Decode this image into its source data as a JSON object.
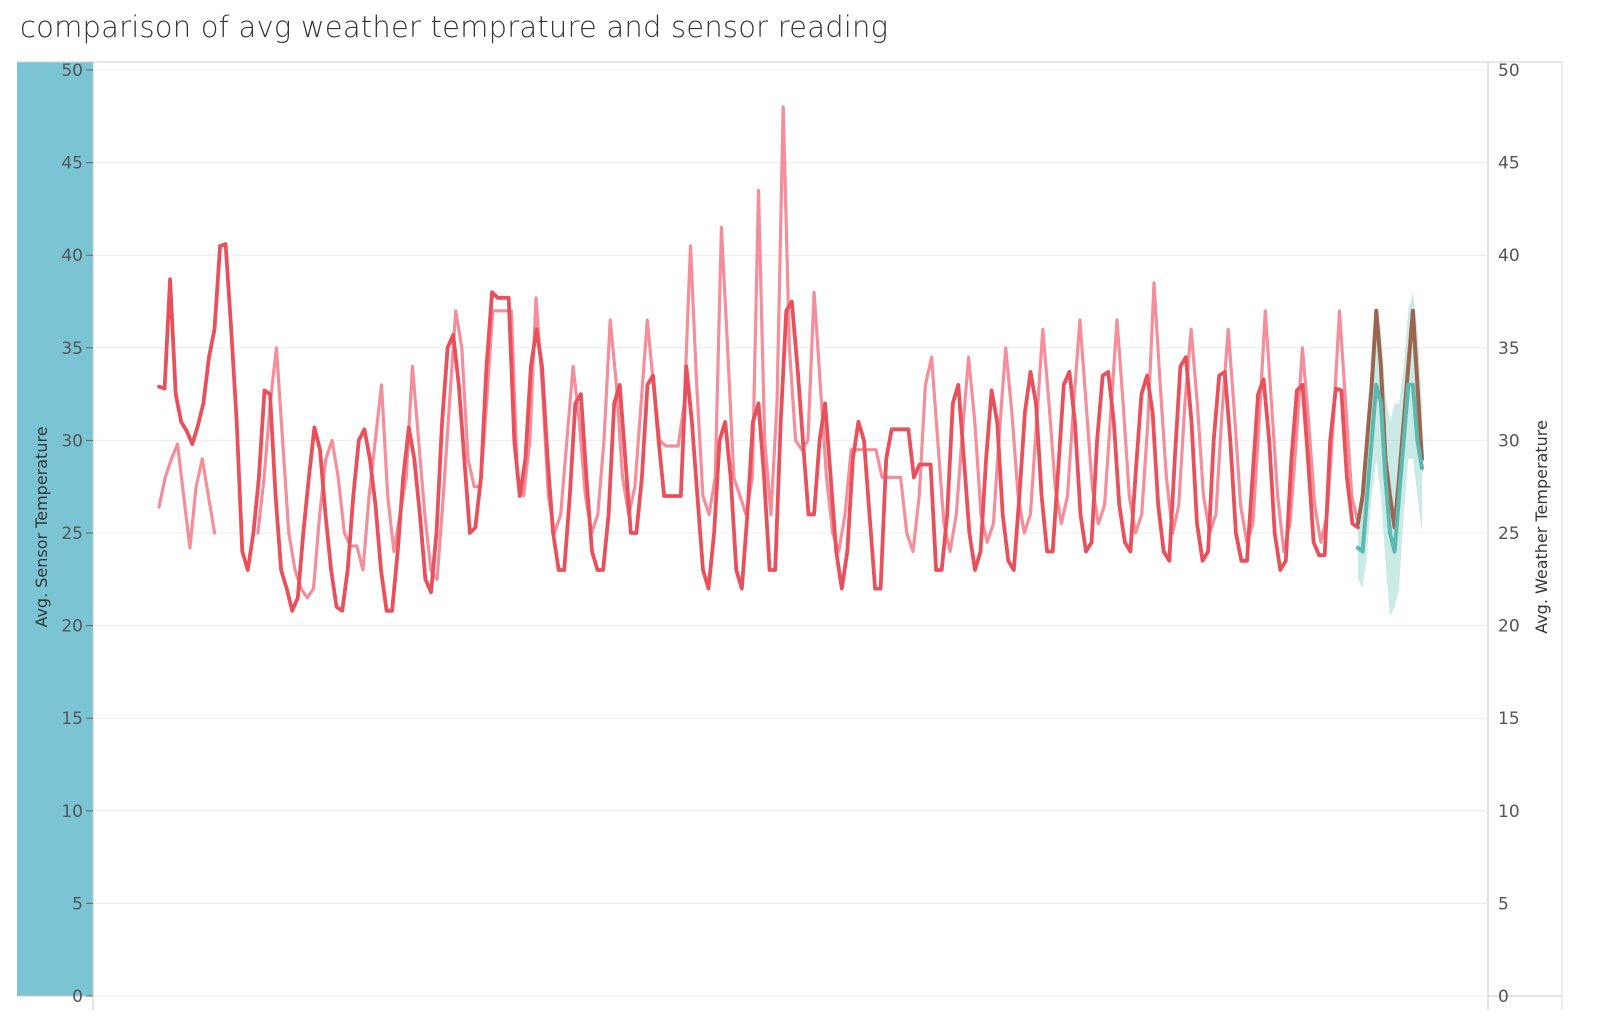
{
  "chart_data": {
    "type": "line",
    "title": "comparison of avg weather temprature and sensor reading",
    "ylabel_left": "Avg. Sensor Temperature",
    "ylabel_right": "Avg. Weather Temperature",
    "ylim": [
      0,
      50
    ],
    "y_ticks_left": [
      "0",
      "5",
      "10",
      "15",
      "20",
      "25",
      "30",
      "35",
      "40",
      "45",
      "50"
    ],
    "y_ticks_right": [
      "0",
      "5",
      "10",
      "15",
      "20",
      "25",
      "30",
      "35",
      "40",
      "45",
      "50"
    ],
    "grid": true,
    "colors": {
      "sensor": "#e8505b",
      "weather": "#f48e9b",
      "forecast_sensor": "#9b6550",
      "forecast_weather": "#5bb9b0",
      "forecast_band": "#9fd8d1",
      "left_axis_band": "#7ac4d4"
    },
    "series": [
      {
        "role": "sensor",
        "values": [
          32.9,
          32.8,
          38.7,
          32.5,
          31.0,
          30.5,
          29.8,
          30.8,
          32.0,
          34.5,
          36.0,
          40.5,
          40.6,
          36.0,
          31.0,
          24.0,
          23.0,
          25.0,
          28.0,
          32.7,
          32.5,
          27.0,
          23.0,
          22.0,
          20.8,
          21.5,
          25.0,
          28.0,
          30.7,
          29.5,
          26.0,
          23.0,
          21.0,
          20.8,
          23.0,
          27.0,
          30.0,
          30.6,
          29.0,
          26.5,
          23.0,
          20.8,
          20.8,
          24.0,
          28.0,
          30.7,
          29.0,
          26.0,
          22.5,
          21.8,
          25.0,
          31.0,
          35.0,
          35.7,
          33.0,
          29.0,
          25.0,
          25.3,
          28.0,
          34.0,
          38.0,
          37.7,
          37.7,
          37.7,
          30.0,
          27.0,
          29.0,
          34.0,
          36.0,
          34.0,
          29.0,
          25.0,
          23.0,
          23.0,
          27.0,
          32.0,
          32.5,
          28.0,
          24.0,
          23.0,
          23.0,
          26.0,
          32.0,
          33.0,
          29.0,
          25.0,
          25.0,
          28.0,
          33.0,
          33.5,
          30.0,
          27.0,
          27.0,
          27.0,
          27.0,
          34.0,
          31.0,
          27.0,
          23.0,
          22.0,
          25.0,
          30.0,
          31.0,
          28.0,
          23.0,
          22.0,
          26.0,
          31.0,
          32.0,
          28.0,
          23.0,
          23.0,
          31.0,
          37.0,
          37.5,
          34.0,
          30.0,
          26.0,
          26.0,
          30.0,
          32.0,
          28.0,
          24.0,
          22.0,
          24.0,
          29.0,
          31.0,
          30.0,
          26.0,
          22.0,
          22.0,
          29.0,
          30.6,
          30.6,
          30.6,
          30.6,
          28.0,
          28.7,
          28.7,
          28.7,
          23.0,
          23.0,
          26.0,
          32.0,
          33.0,
          29.0,
          25.0,
          23.0,
          24.0,
          29.0,
          32.7,
          31.0,
          26.0,
          23.5,
          23.0,
          27.0,
          31.5,
          33.7,
          32.0,
          27.0,
          24.0,
          24.0,
          28.5,
          33.0,
          33.7,
          31.0,
          26.0,
          24.0,
          24.5,
          30.0,
          33.5,
          33.7,
          31.0,
          26.5,
          24.5,
          24.0,
          28.5,
          32.5,
          33.5,
          31.5,
          26.5,
          24.0,
          23.5,
          29.0,
          34.0,
          34.5,
          31.0,
          25.5,
          23.5,
          24.0,
          30.0,
          33.5,
          33.7,
          30.0,
          25.0,
          23.5,
          23.5,
          28.0,
          32.5,
          33.3,
          30.0,
          25.0,
          23.0,
          23.5,
          29.0,
          32.7,
          33.0,
          29.0,
          24.5,
          23.8,
          23.8,
          30.0,
          32.8,
          32.7,
          28.0,
          25.5,
          25.3
        ]
      },
      {
        "role": "weather",
        "values": [
          26.4,
          28.0,
          29.0,
          29.8,
          27.0,
          24.2,
          27.5,
          29.0,
          27.0,
          25.0,
          null,
          null,
          null,
          null,
          null,
          null,
          25.0,
          28.0,
          32.0,
          35.0,
          30.0,
          25.0,
          23.0,
          22.0,
          21.5,
          22.0,
          26.0,
          29.0,
          30.0,
          28.0,
          25.0,
          24.3,
          24.3,
          23.0,
          27.0,
          30.0,
          33.0,
          27.0,
          24.0,
          26.0,
          28.0,
          34.0,
          30.0,
          26.0,
          23.0,
          22.5,
          27.0,
          32.0,
          37.0,
          35.0,
          29.0,
          27.5,
          27.5,
          32.0,
          37.0,
          37.0,
          37.0,
          37.0,
          28.0,
          27.0,
          30.0,
          37.7,
          33.0,
          27.0,
          25.0,
          26.0,
          30.0,
          34.0,
          31.0,
          27.0,
          25.0,
          26.0,
          30.0,
          36.5,
          33.0,
          28.0,
          26.0,
          27.5,
          32.0,
          36.5,
          33.0,
          30.0,
          29.7,
          29.7,
          29.7,
          32.0,
          40.5,
          33.0,
          27.0,
          26.0,
          28.0,
          41.5,
          35.0,
          28.0,
          27.0,
          26.0,
          28.0,
          43.5,
          30.0,
          26.0,
          32.0,
          48.0,
          35.0,
          30.0,
          29.5,
          30.0,
          38.0,
          33.0,
          28.0,
          25.0,
          24.0,
          26.0,
          29.5,
          29.5,
          29.5,
          29.5,
          29.5,
          28.0,
          28.0,
          28.0,
          28.0,
          25.0,
          24.0,
          27.0,
          33.0,
          34.5,
          30.0,
          25.5,
          24.0,
          26.0,
          30.5,
          34.5,
          31.0,
          26.0,
          24.5,
          25.5,
          30.5,
          35.0,
          31.5,
          27.0,
          25.0,
          26.0,
          31.0,
          36.0,
          32.0,
          27.5,
          25.5,
          27.0,
          32.0,
          36.5,
          32.0,
          27.5,
          25.5,
          26.5,
          31.5,
          36.5,
          32.0,
          27.0,
          25.0,
          26.0,
          31.0,
          38.5,
          33.0,
          28.0,
          25.0,
          26.5,
          32.0,
          36.0,
          32.0,
          27.0,
          25.0,
          26.0,
          31.5,
          36.0,
          31.5,
          26.5,
          24.5,
          25.5,
          31.0,
          37.0,
          32.0,
          27.0,
          24.0,
          25.5,
          30.0,
          35.0,
          31.0,
          26.5,
          24.5,
          26.0,
          31.0,
          37.0,
          32.0,
          27.0,
          25.5
        ]
      },
      {
        "role": "forecast_sensor",
        "values": [
          25.5,
          27.0,
          30.0,
          33.0,
          37.0,
          34.0,
          29.0,
          27.0,
          25.3,
          28.0,
          31.0,
          34.0,
          37.0,
          33.0,
          29.0
        ]
      },
      {
        "role": "forecast_weather",
        "values": [
          24.2,
          24.0,
          27.0,
          30.0,
          33.0,
          32.0,
          28.0,
          25.0,
          24.0,
          27.0,
          30.0,
          33.0,
          33.0,
          30.0,
          28.5
        ],
        "band_upper": [
          26.0,
          27.0,
          30.0,
          34.0,
          37.0,
          36.0,
          32.5,
          31.0,
          32.0,
          32.0,
          34.0,
          37.0,
          38.0,
          36.0,
          32.0
        ],
        "band_lower": [
          22.5,
          22.0,
          24.0,
          27.0,
          29.0,
          27.0,
          23.5,
          20.5,
          21.0,
          22.0,
          26.0,
          29.0,
          29.0,
          27.0,
          25.0
        ]
      }
    ]
  }
}
